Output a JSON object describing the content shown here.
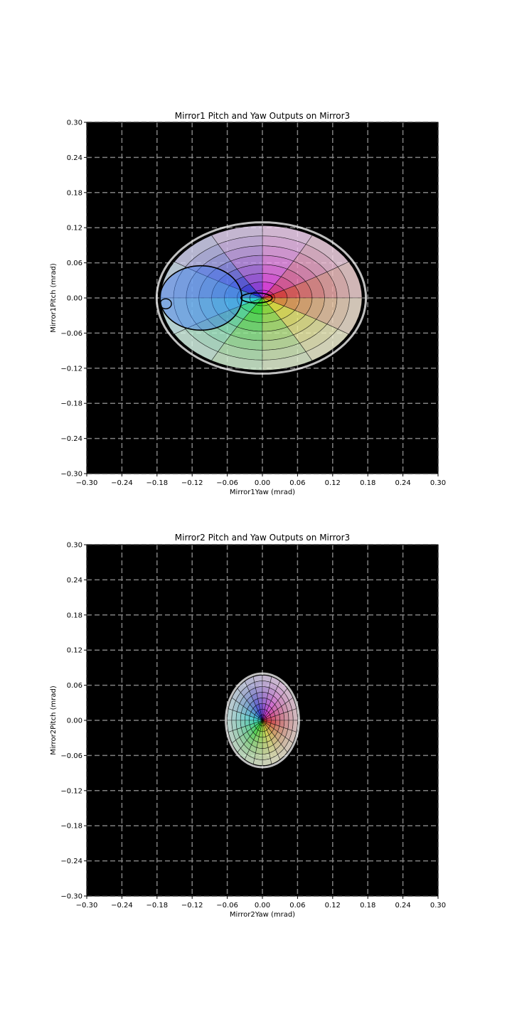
{
  "chart_data": [
    {
      "type": "scatter",
      "title": "Mirror1 Pitch and Yaw Outputs on Mirror3",
      "xlabel": "Mirror1Yaw (mrad)",
      "ylabel": "Mirror1Pitch (mrad)",
      "xlim": [
        -0.3,
        0.3
      ],
      "ylim": [
        -0.3,
        0.3
      ],
      "xticks": [
        -0.3,
        -0.24,
        -0.18,
        -0.12,
        -0.06,
        0.0,
        0.06,
        0.12,
        0.18,
        0.24,
        0.3
      ],
      "yticks": [
        -0.3,
        -0.24,
        -0.18,
        -0.12,
        -0.06,
        0.0,
        0.06,
        0.12,
        0.18,
        0.24,
        0.3
      ],
      "xtick_labels": [
        "−0.30",
        "−0.24",
        "−0.18",
        "−0.12",
        "−0.06",
        "0.00",
        "0.06",
        "0.12",
        "0.18",
        "0.24",
        "0.30"
      ],
      "ytick_labels": [
        "−0.30",
        "−0.24",
        "−0.18",
        "−0.12",
        "−0.06",
        "0.00",
        "0.06",
        "0.12",
        "0.18",
        "0.24",
        "0.30"
      ],
      "background": "#000000",
      "grid": true,
      "grid_style": "dashed",
      "grid_color": "#808080",
      "shape": "distorted polar color wheel",
      "extent": {
        "yaw": [
          -0.17,
          0.17
        ],
        "pitch": [
          -0.14,
          0.12
        ]
      },
      "center": [
        0.0,
        0.0
      ],
      "hue_sectors": 12,
      "radial_rings": 8
    },
    {
      "type": "scatter",
      "title": "Mirror2 Pitch and Yaw Outputs on Mirror3",
      "xlabel": "Mirror2Yaw (mrad)",
      "ylabel": "Mirror2Pitch (mrad)",
      "xlim": [
        -0.3,
        0.3
      ],
      "ylim": [
        -0.3,
        0.3
      ],
      "xticks": [
        -0.3,
        -0.24,
        -0.18,
        -0.12,
        -0.06,
        0.0,
        0.06,
        0.12,
        0.18,
        0.24,
        0.3
      ],
      "yticks": [
        -0.3,
        -0.24,
        -0.18,
        -0.12,
        -0.06,
        0.0,
        0.06,
        0.12,
        0.18,
        0.24,
        0.3
      ],
      "xtick_labels": [
        "−0.30",
        "−0.24",
        "−0.18",
        "−0.12",
        "−0.06",
        "0.00",
        "0.06",
        "0.12",
        "0.18",
        "0.24",
        "0.30"
      ],
      "ytick_labels": [
        "−0.30",
        "−0.24",
        "−0.18",
        "−0.12",
        "−0.06",
        "0.00",
        "0.06",
        "0.12",
        "0.18",
        "0.24",
        "0.30"
      ],
      "background": "#000000",
      "grid": true,
      "grid_style": "dashed",
      "grid_color": "#808080",
      "shape": "elliptical polar color wheel",
      "extent": {
        "yaw": [
          -0.06,
          0.06
        ],
        "pitch": [
          -0.077,
          0.077
        ]
      },
      "center": [
        0.0,
        0.0
      ],
      "hue_sectors": 24,
      "radial_rings": 8
    }
  ]
}
